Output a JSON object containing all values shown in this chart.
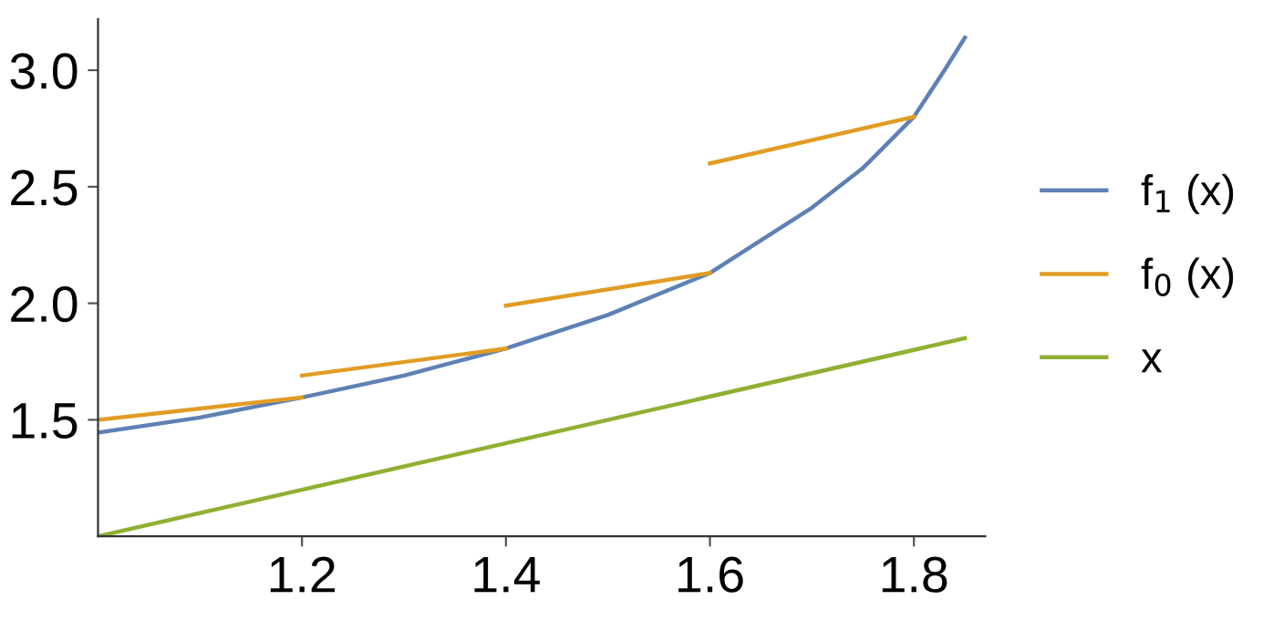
{
  "chart_data": {
    "type": "line",
    "series": [
      {
        "name": "f$_{1}$ (x)",
        "color": "#5e81b5",
        "x": [
          1.0,
          1.1,
          1.2,
          1.3,
          1.4,
          1.5,
          1.6,
          1.7,
          1.75,
          1.8,
          1.83,
          1.85
        ],
        "values": [
          1.445,
          1.51,
          1.596,
          1.69,
          1.806,
          1.95,
          2.13,
          2.41,
          2.58,
          2.8,
          3.0,
          3.14
        ]
      },
      {
        "name": "f$_{0}$ (x)",
        "color": "#e19c24",
        "x": [
          1.0,
          1.2,
          null,
          1.2,
          1.4,
          null,
          1.4,
          1.6,
          null,
          1.6,
          1.8
        ],
        "values": [
          1.5,
          1.596,
          null,
          1.69,
          1.806,
          null,
          1.99,
          2.13,
          null,
          2.6,
          2.8
        ]
      },
      {
        "name": "x",
        "color": "#8fb032",
        "x": [
          1.0,
          1.85
        ],
        "values": [
          1.0,
          1.85
        ]
      }
    ],
    "xlim": [
      1.0,
      1.87
    ],
    "ylim": [
      1.0,
      3.22
    ],
    "xticks": [
      1.2,
      1.4,
      1.6,
      1.8
    ],
    "yticks": [
      1.5,
      {
        "value": 2,
        "label": "2.0"
      },
      2.5,
      {
        "value": 3,
        "label": "3.0"
      }
    ],
    "legend": "right",
    "grid": false,
    "line_style": "solid",
    "marker": "none"
  }
}
